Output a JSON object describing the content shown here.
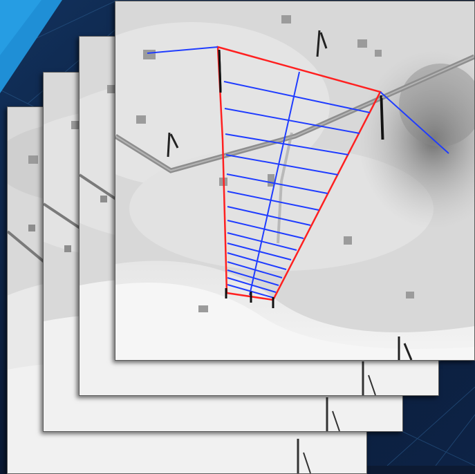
{
  "scene": {
    "background_color": "#0c1a33",
    "accent_color": "#1f8fd6",
    "annotation_colors": {
      "boundary": "#ff2020",
      "measure_lines": "#1f3cff"
    },
    "frames": [
      {
        "id": "frame-1",
        "layer": "front"
      },
      {
        "id": "frame-2",
        "layer": "second"
      },
      {
        "id": "frame-3",
        "layer": "third"
      },
      {
        "id": "frame-4",
        "layer": "back"
      }
    ]
  }
}
